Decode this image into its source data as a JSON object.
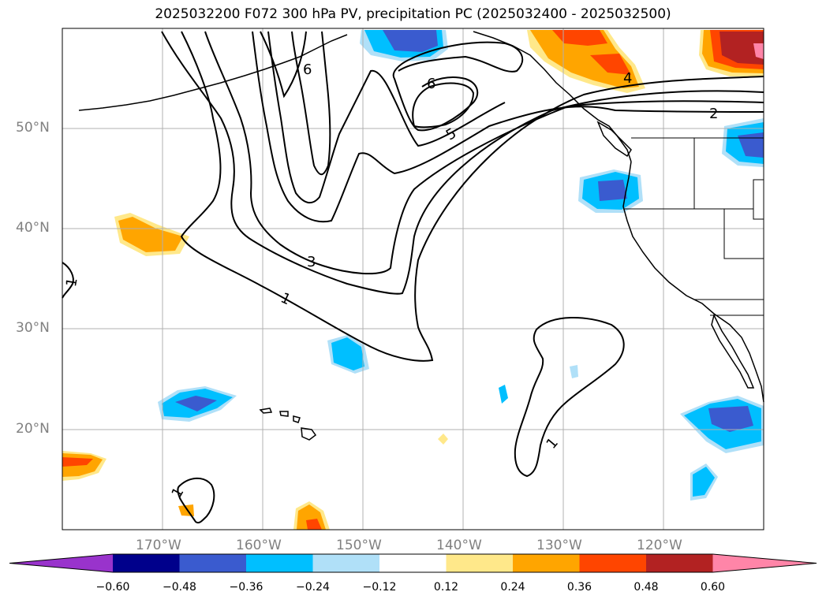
{
  "title": "2025032200 F072 300 hPa PV, precipitation PC (2025032400 - 2025032500)",
  "map": {
    "lon_range": [
      -180,
      -110
    ],
    "lat_range": [
      10,
      60
    ],
    "gridlines": true,
    "lon_ticks": [
      {
        "value": -170,
        "label": "170°W"
      },
      {
        "value": -160,
        "label": "160°W"
      },
      {
        "value": -150,
        "label": "150°W"
      },
      {
        "value": -140,
        "label": "140°W"
      },
      {
        "value": -130,
        "label": "130°W"
      },
      {
        "value": -120,
        "label": "120°W"
      }
    ],
    "lat_ticks": [
      {
        "value": 50,
        "label": "50°N"
      },
      {
        "value": 40,
        "label": "40°N"
      },
      {
        "value": 30,
        "label": "30°N"
      },
      {
        "value": 20,
        "label": "20°N"
      }
    ],
    "contour_labels": [
      "1",
      "3",
      "5",
      "6",
      "4",
      "2",
      "1",
      "1",
      "1",
      "6"
    ]
  },
  "colorbar": {
    "colors": [
      "#9933cc",
      "#00008b",
      "#3a5bcf",
      "#00bfff",
      "#b0e0f8",
      "#ffffff",
      "#ffe88a",
      "#ffa500",
      "#ff4500",
      "#b22222",
      "#ff85a8"
    ],
    "tick_labels": [
      "−0.60",
      "−0.48",
      "−0.36",
      "−0.24",
      "−0.12",
      "0.12",
      "0.24",
      "0.36",
      "0.48",
      "0.60"
    ]
  },
  "colors": {
    "grid": "#b0b0b0",
    "contour": "#000000",
    "coast": "#000000"
  }
}
